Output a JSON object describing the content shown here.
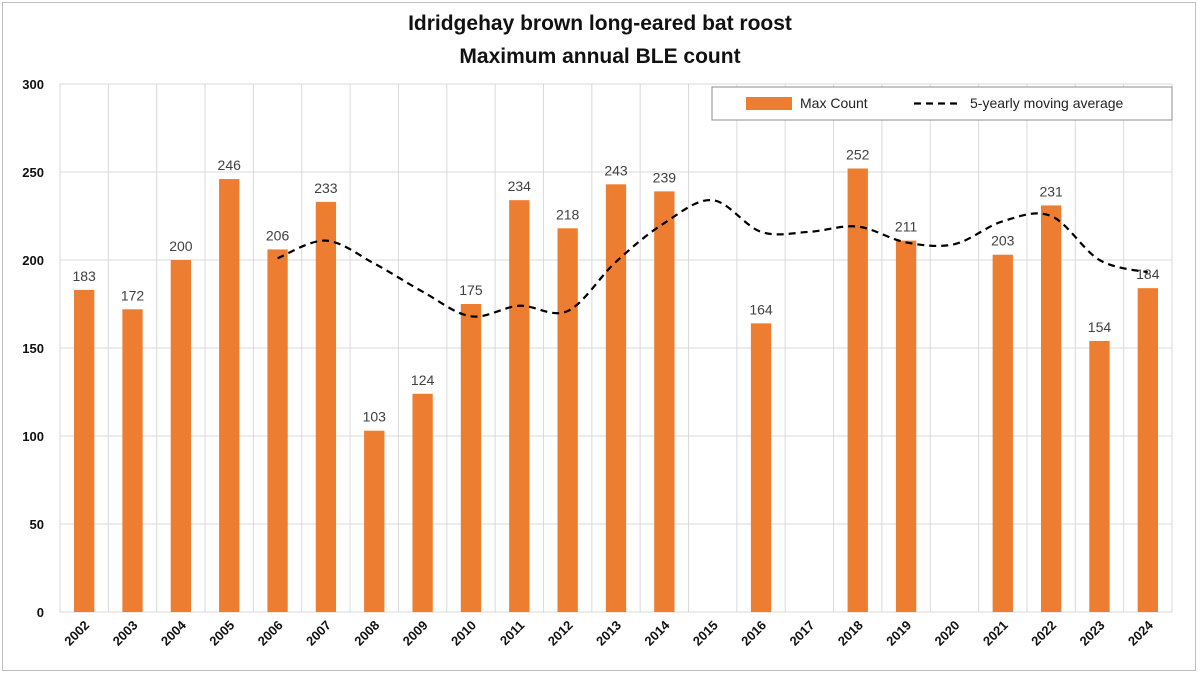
{
  "chart_data": {
    "type": "bar",
    "title": "Idridgehay brown long-eared bat roost",
    "subtitle": "Maximum annual BLE count",
    "xlabel": "",
    "ylabel": "",
    "ylim": [
      0,
      300
    ],
    "yticks": [
      0,
      50,
      100,
      150,
      200,
      250,
      300
    ],
    "grid": true,
    "legend_position": "top-right",
    "categories": [
      "2002",
      "2003",
      "2004",
      "2005",
      "2006",
      "2007",
      "2008",
      "2009",
      "2010",
      "2011",
      "2012",
      "2013",
      "2014",
      "2015",
      "2016",
      "2017",
      "2018",
      "2019",
      "2020",
      "2021",
      "2022",
      "2023",
      "2024"
    ],
    "series": [
      {
        "name": "Max Count",
        "type": "bar",
        "color": "#ed7d31",
        "values": [
          183,
          172,
          200,
          246,
          206,
          233,
          103,
          124,
          175,
          234,
          218,
          243,
          239,
          null,
          164,
          null,
          252,
          211,
          null,
          203,
          231,
          154,
          184
        ]
      },
      {
        "name": "5-yearly moving average",
        "type": "line",
        "style": "dashed",
        "color": "#000000",
        "values": [
          null,
          null,
          null,
          null,
          201,
          211,
          198,
          182,
          168,
          174,
          171,
          199,
          221,
          234,
          216,
          216,
          219,
          210,
          209,
          222,
          225,
          200,
          193
        ]
      }
    ]
  }
}
